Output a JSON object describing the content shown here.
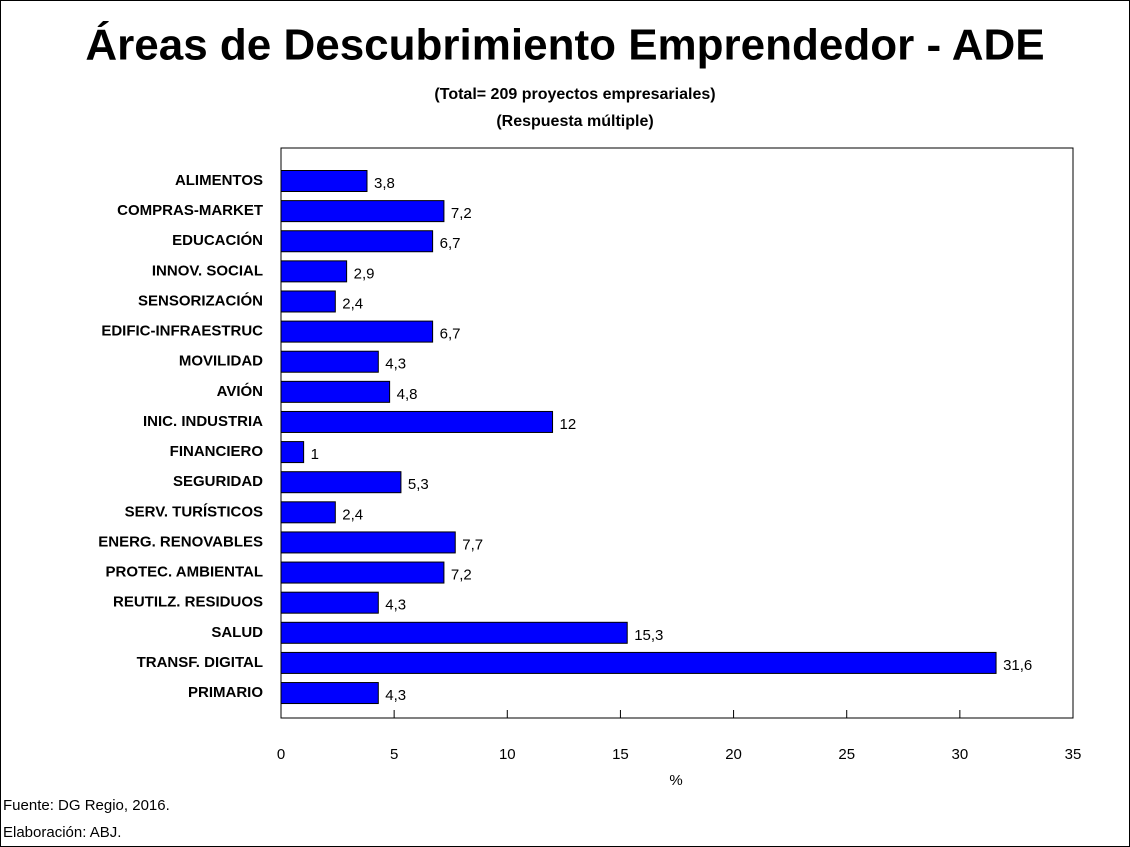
{
  "chart_data": {
    "type": "barh",
    "title": "Áreas de Descubrimiento Emprendedor - ADE",
    "subtitle": [
      "(Total= 209 proyectos empresariales)",
      "(Respuesta múltiple)"
    ],
    "x_label": "%",
    "notes": [
      "Fuente: DG Regio, 2016.",
      "Elaboración: ABJ."
    ],
    "categories": [
      "ALIMENTOS",
      "COMPRAS-MARKET",
      "EDUCACIÓN",
      "INNOV. SOCIAL",
      "SENSORIZACIÓN",
      "EDIFIC-INFRAESTRUC",
      "MOVILIDAD",
      "AVIÓN",
      "INIC. INDUSTRIA",
      "FINANCIERO",
      "SEGURIDAD",
      "SERV. TURÍSTICOS",
      "ENERG. RENOVABLES",
      "PROTEC. AMBIENTAL",
      "REUTILZ. RESIDUOS",
      "SALUD",
      "TRANSF. DIGITAL",
      "PRIMARIO"
    ],
    "values": [
      3.8,
      7.2,
      6.7,
      2.9,
      2.4,
      6.7,
      4.3,
      4.8,
      12,
      1,
      5.3,
      2.4,
      7.7,
      7.2,
      4.3,
      15.3,
      31.6,
      4.3
    ],
    "value_labels": [
      "3,8",
      "7,2",
      "6,7",
      "2,9",
      "2,4",
      "6,7",
      "4,3",
      "4,8",
      "12",
      "1",
      "5,3",
      "2,4",
      "7,7",
      "7,2",
      "4,3",
      "15,3",
      "31,6",
      "4,3"
    ],
    "color": "#0000ff",
    "xlim": [
      0,
      35
    ],
    "xticks": [
      0,
      5,
      10,
      15,
      20,
      25,
      30,
      35
    ]
  }
}
